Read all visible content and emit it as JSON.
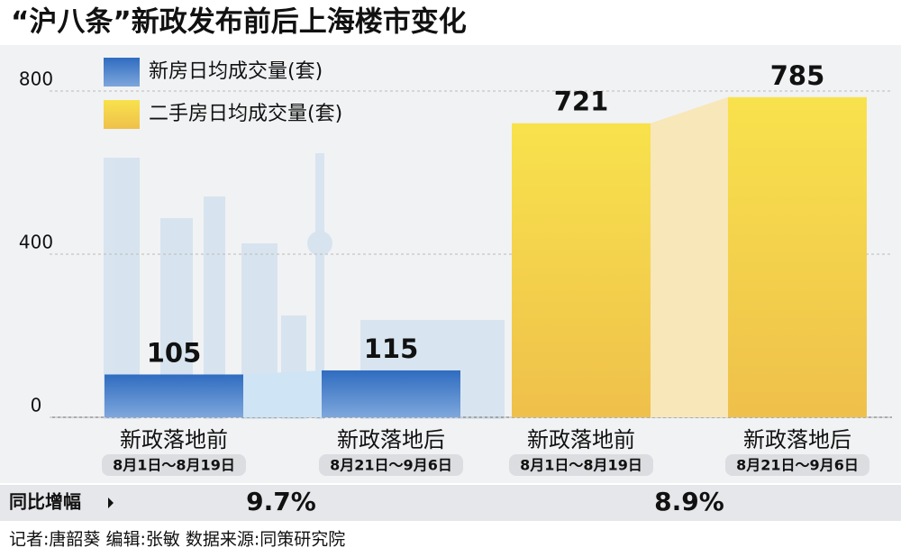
{
  "chart_data": {
    "type": "bar",
    "title": "“沪八条”新政发布前后上海楼市变化",
    "categories": [
      "新政落地前",
      "新政落地后",
      "新政落地前",
      "新政落地后"
    ],
    "category_dates": [
      "8月1日～8月19日",
      "8月21日～9月6日",
      "8月1日～8月19日",
      "8月21日～9月6日"
    ],
    "series": [
      {
        "name": "新房日均成交量(套)",
        "color": "#2f6cc0",
        "values": [
          105,
          115,
          null,
          null
        ]
      },
      {
        "name": "二手房日均成交量(套)",
        "color": "#f4cf45",
        "values": [
          null,
          null,
          721,
          785
        ]
      }
    ],
    "ylim": [
      0,
      800
    ],
    "yticks": [
      0,
      400,
      800
    ],
    "grid": true,
    "growth_label": "同比增幅",
    "growth": [
      "9.7%",
      "8.9%"
    ],
    "credits": "记者:唐韶葵   编辑:张敏   数据来源:同策研究院"
  }
}
